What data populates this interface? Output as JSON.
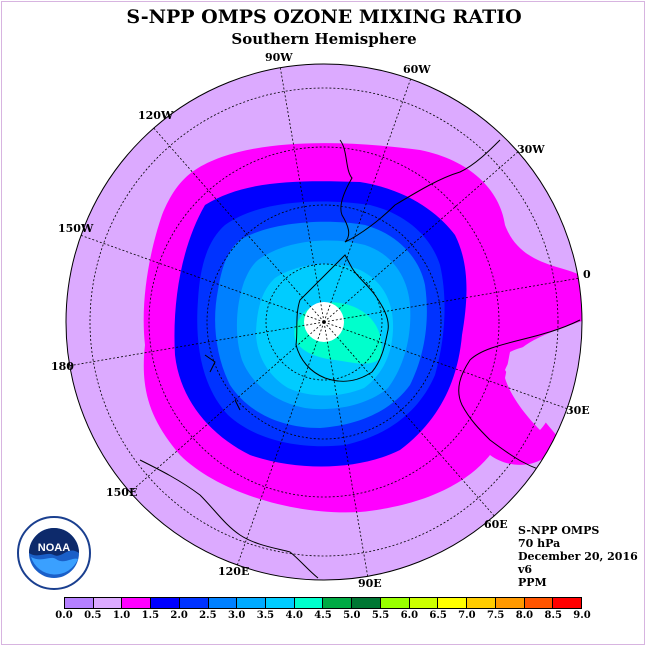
{
  "title": "S-NPP OMPS OZONE MIXING RATIO",
  "subtitle": "Southern Hemisphere",
  "longitude_labels": [
    "90W",
    "60W",
    "30W",
    "0",
    "30E",
    "60E",
    "90E",
    "120E",
    "150E",
    "180",
    "150W",
    "120W"
  ],
  "info": {
    "instrument": "S-NPP OMPS",
    "pressure": "70 hPa",
    "date": "December 20, 2016",
    "version": "v6",
    "unit": "PPM"
  },
  "logo": {
    "text": "NOAA",
    "icon": "noaa-logo-icon"
  },
  "colorbar": {
    "ticks": [
      "0.0",
      "0.5",
      "1.0",
      "1.5",
      "2.0",
      "2.5",
      "3.0",
      "3.5",
      "4.0",
      "4.5",
      "5.0",
      "5.5",
      "6.0",
      "6.5",
      "7.0",
      "7.5",
      "8.0",
      "8.5",
      "9.0"
    ],
    "colors": [
      "#b580ff",
      "#dcaaff",
      "#ff00ff",
      "#0000ff",
      "#0033ff",
      "#0080ff",
      "#00aaff",
      "#00ccff",
      "#00ffcc",
      "#00aa44",
      "#007733",
      "#99ff00",
      "#ccff00",
      "#ffff00",
      "#ffcc00",
      "#ff9900",
      "#ff5500",
      "#ff0000",
      "#8b5a3c"
    ]
  },
  "colors": {
    "band_0_5_to_1_0": "#dcaaff",
    "band_1_0_to_1_5": "#ff00ff",
    "band_1_5_to_2_0": "#0000ff",
    "band_2_0_to_2_5": "#0033ff",
    "band_2_5_to_3_0": "#0080ff",
    "band_3_0_to_3_5": "#00aaff",
    "band_3_5_to_4_0": "#00ccff",
    "band_4_0_to_4_5": "#00ffcc"
  }
}
